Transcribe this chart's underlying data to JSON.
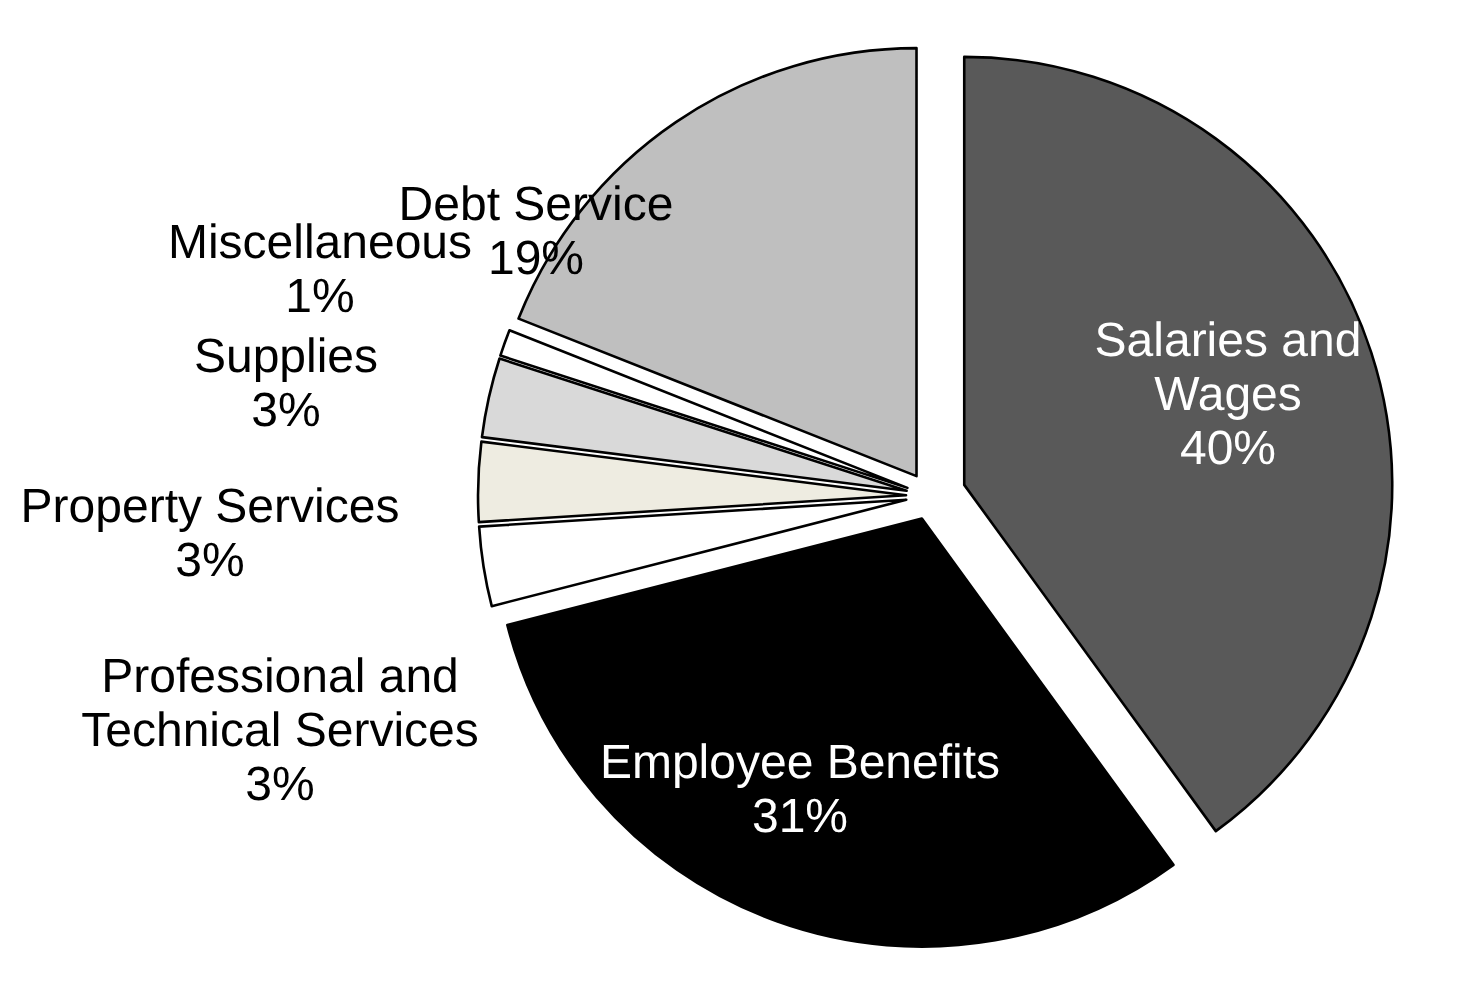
{
  "chart_data": {
    "type": "pie",
    "categories": [
      "Salaries and Wages",
      "Employee Benefits",
      "Professional and Technical Services",
      "Property Services",
      "Supplies",
      "Miscellaneous",
      "Debt Service"
    ],
    "values": [
      40,
      31,
      3,
      3,
      3,
      1,
      19
    ],
    "colors": [
      "#595959",
      "#000000",
      "#ffffff",
      "#eeece1",
      "#d9d9d9",
      "#ffffff",
      "#bfbfbf"
    ],
    "value_labels": [
      "40%",
      "31%",
      "3%",
      "3%",
      "3%",
      "1%",
      "19%"
    ]
  }
}
